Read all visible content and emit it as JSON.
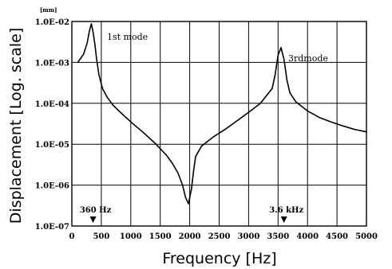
{
  "chart_data": {
    "type": "line",
    "xlabel": "Frequency [Hz]",
    "ylabel": "Displacement [Log. scale]",
    "yunit": "[mm]",
    "yscale": "log",
    "xlim": [
      0,
      5000
    ],
    "ylim": [
      1e-07,
      0.01
    ],
    "grid": true,
    "x_ticks": [
      0,
      500,
      1000,
      1500,
      2000,
      2500,
      3000,
      3500,
      4000,
      4500,
      5000
    ],
    "x_tick_labels": [
      "0",
      "500",
      "1000",
      "1500",
      "2000",
      "2500",
      "3000",
      "3500",
      "4000",
      "4500",
      "5000"
    ],
    "y_ticks": [
      1e-07,
      1e-06,
      1e-05,
      0.0001,
      0.001,
      0.01
    ],
    "y_tick_labels": [
      "1.0E-07",
      "1.0E-06",
      "1.0E-05",
      "1.0E-04",
      "1.0E-03",
      "1.0E-02"
    ],
    "series": [
      {
        "x": [
          100,
          200,
          260,
          300,
          330,
          360,
          390,
          420,
          460,
          520,
          600,
          700,
          800,
          1000,
          1200,
          1400,
          1600,
          1700,
          1800,
          1880,
          1930,
          1980,
          2030,
          2070,
          2100,
          2200,
          2400,
          2600,
          2800,
          3000,
          3200,
          3400,
          3450,
          3500,
          3550,
          3600,
          3650,
          3700,
          3800,
          4000,
          4200,
          4400,
          4600,
          4800,
          5000
        ],
        "y": [
          0.001,
          0.0016,
          0.003,
          0.006,
          0.0088,
          0.0055,
          0.0028,
          0.0012,
          0.0005,
          0.00023,
          0.00014,
          9e-05,
          6.5e-05,
          3.5e-05,
          2e-05,
          1.1e-05,
          5.5e-06,
          3.5e-06,
          2e-06,
          1e-06,
          5e-07,
          3.5e-07,
          8e-07,
          2.5e-06,
          5e-06,
          9e-06,
          1.5e-05,
          2.3e-05,
          3.7e-05,
          6e-05,
          0.0001,
          0.00023,
          0.0005,
          0.0015,
          0.0023,
          0.0012,
          0.00037,
          0.00018,
          0.00011,
          6.5e-05,
          4.5e-05,
          3.5e-05,
          2.8e-05,
          2.3e-05,
          2e-05
        ]
      }
    ],
    "annotations": [
      "1st mode",
      "3rdmode"
    ],
    "markers": [
      {
        "x": 360,
        "label": "360 Hz"
      },
      {
        "x": 3600,
        "label": "3.6 kHz"
      }
    ]
  }
}
